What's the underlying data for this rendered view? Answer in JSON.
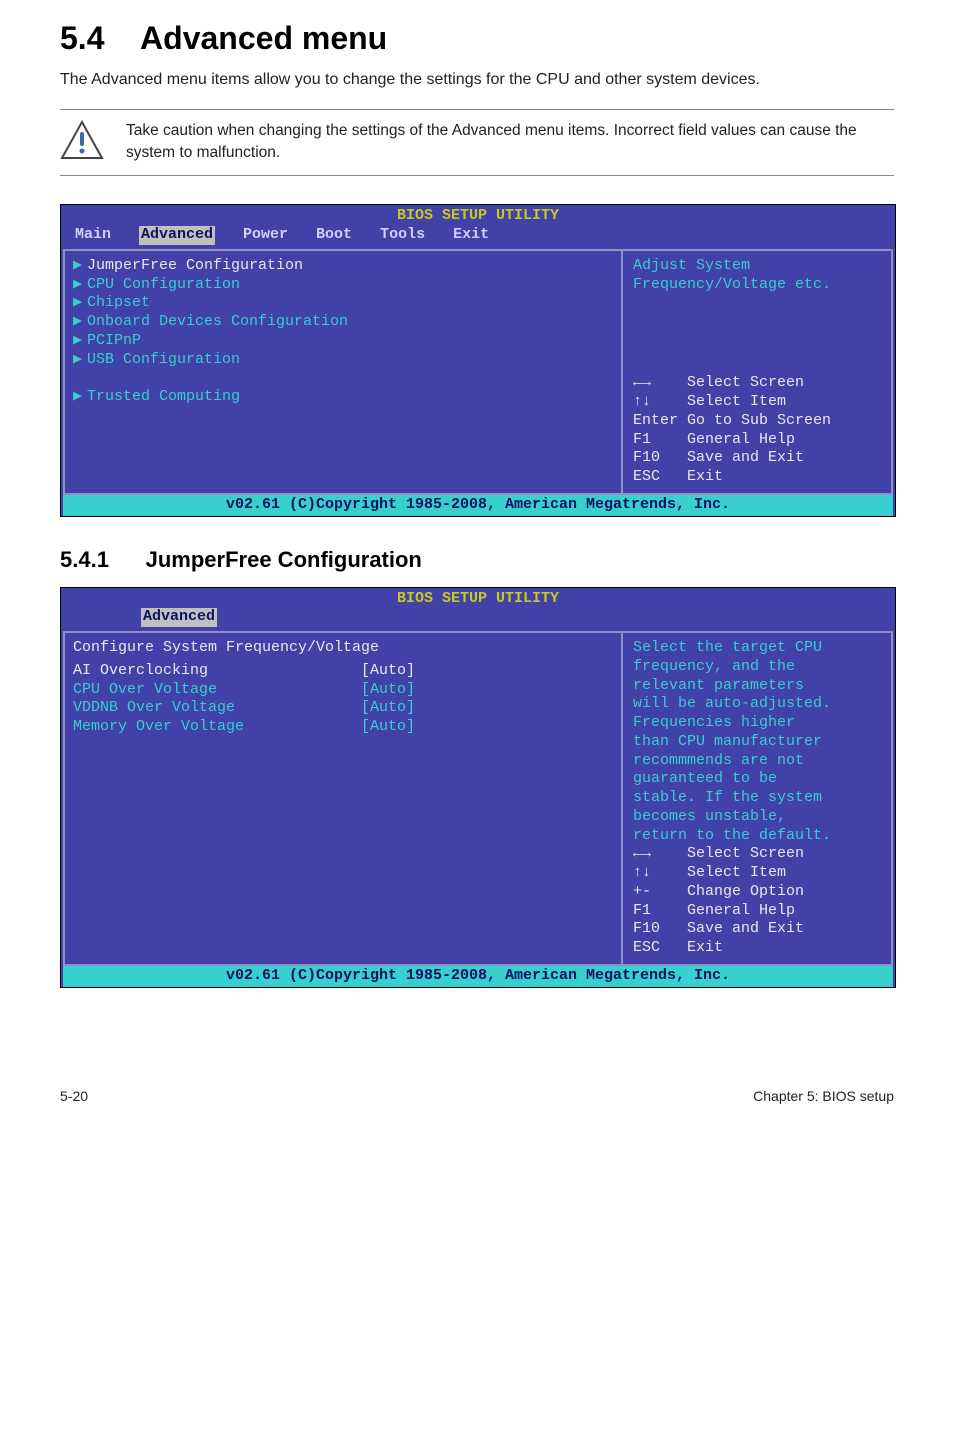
{
  "heading": {
    "num": "5.4",
    "title": "Advanced menu"
  },
  "intro": "The Advanced menu items allow you to change the settings for the CPU and other system devices.",
  "note": "Take caution when changing the settings of the Advanced menu items. Incorrect field values can cause the system to malfunction.",
  "bios1": {
    "title": "BIOS SETUP UTILITY",
    "tabs": [
      "Main",
      "Advanced",
      "Power",
      "Boot",
      "Tools",
      "Exit"
    ],
    "active_tab": "Advanced",
    "items": [
      "JumperFree Configuration",
      "CPU Configuration",
      "Chipset",
      "Onboard Devices Configuration",
      "PCIPnP",
      "USB Configuration"
    ],
    "extra_item": "Trusted Computing",
    "help": "Adjust System\nFrequency/Voltage etc.",
    "keys": [
      [
        "←→   ",
        "Select Screen"
      ],
      [
        "↑↓   ",
        "Select Item"
      ],
      [
        "Enter",
        "Go to Sub Screen"
      ],
      [
        "F1   ",
        "General Help"
      ],
      [
        "F10  ",
        "Save and Exit"
      ],
      [
        "ESC  ",
        "Exit"
      ]
    ],
    "foot": "v02.61 (C)Copyright 1985-2008, American Megatrends, Inc."
  },
  "sub": {
    "num": "5.4.1",
    "title": "JumperFree Configuration"
  },
  "bios2": {
    "title": "BIOS SETUP UTILITY",
    "active_tab": "Advanced",
    "heading": "Configure System Frequency/Voltage",
    "rows": [
      {
        "label": "AI Overclocking",
        "val": "[Auto]",
        "sel": true
      },
      {
        "label": "CPU Over Voltage",
        "val": "[Auto]",
        "sel": false
      },
      {
        "label": "VDDNB Over Voltage",
        "val": "[Auto]",
        "sel": false
      },
      {
        "label": "Memory Over Voltage",
        "val": "[Auto]",
        "sel": false
      }
    ],
    "help": "Select the target CPU\nfrequency, and the\nrelevant parameters\nwill be auto-adjusted.\nFrequencies higher\nthan CPU manufacturer\nrecommmends are not\nguaranteed to be\nstable. If the system\nbecomes unstable,\nreturn to the default.",
    "keys": [
      [
        "←→   ",
        "Select Screen"
      ],
      [
        "↑↓   ",
        "Select Item"
      ],
      [
        "+-   ",
        "Change Option"
      ],
      [
        "F1   ",
        "General Help"
      ],
      [
        "F10  ",
        "Save and Exit"
      ],
      [
        "ESC  ",
        "Exit"
      ]
    ],
    "foot": "v02.61 (C)Copyright 1985-2008, American Megatrends, Inc."
  },
  "footer": {
    "left": "5-20",
    "right": "Chapter 5: BIOS setup"
  }
}
